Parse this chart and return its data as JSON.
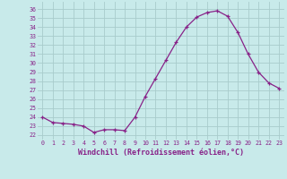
{
  "x": [
    0,
    1,
    2,
    3,
    4,
    5,
    6,
    7,
    8,
    9,
    10,
    11,
    12,
    13,
    14,
    15,
    16,
    17,
    18,
    19,
    20,
    21,
    22,
    23
  ],
  "y": [
    24.0,
    23.4,
    23.3,
    23.2,
    23.0,
    22.3,
    22.6,
    22.6,
    22.5,
    24.0,
    26.3,
    28.3,
    30.3,
    32.3,
    34.0,
    35.1,
    35.6,
    35.8,
    35.2,
    33.4,
    31.0,
    29.0,
    27.8,
    27.2
  ],
  "line_color": "#882288",
  "marker": "+",
  "bg_color": "#c8eaea",
  "grid_color": "#a8cccc",
  "xlabel": "Windchill (Refroidissement éolien,°C)",
  "ylabel_ticks": [
    22,
    23,
    24,
    25,
    26,
    27,
    28,
    29,
    30,
    31,
    32,
    33,
    34,
    35,
    36
  ],
  "ylim": [
    21.5,
    36.8
  ],
  "xlim": [
    -0.5,
    23.5
  ]
}
